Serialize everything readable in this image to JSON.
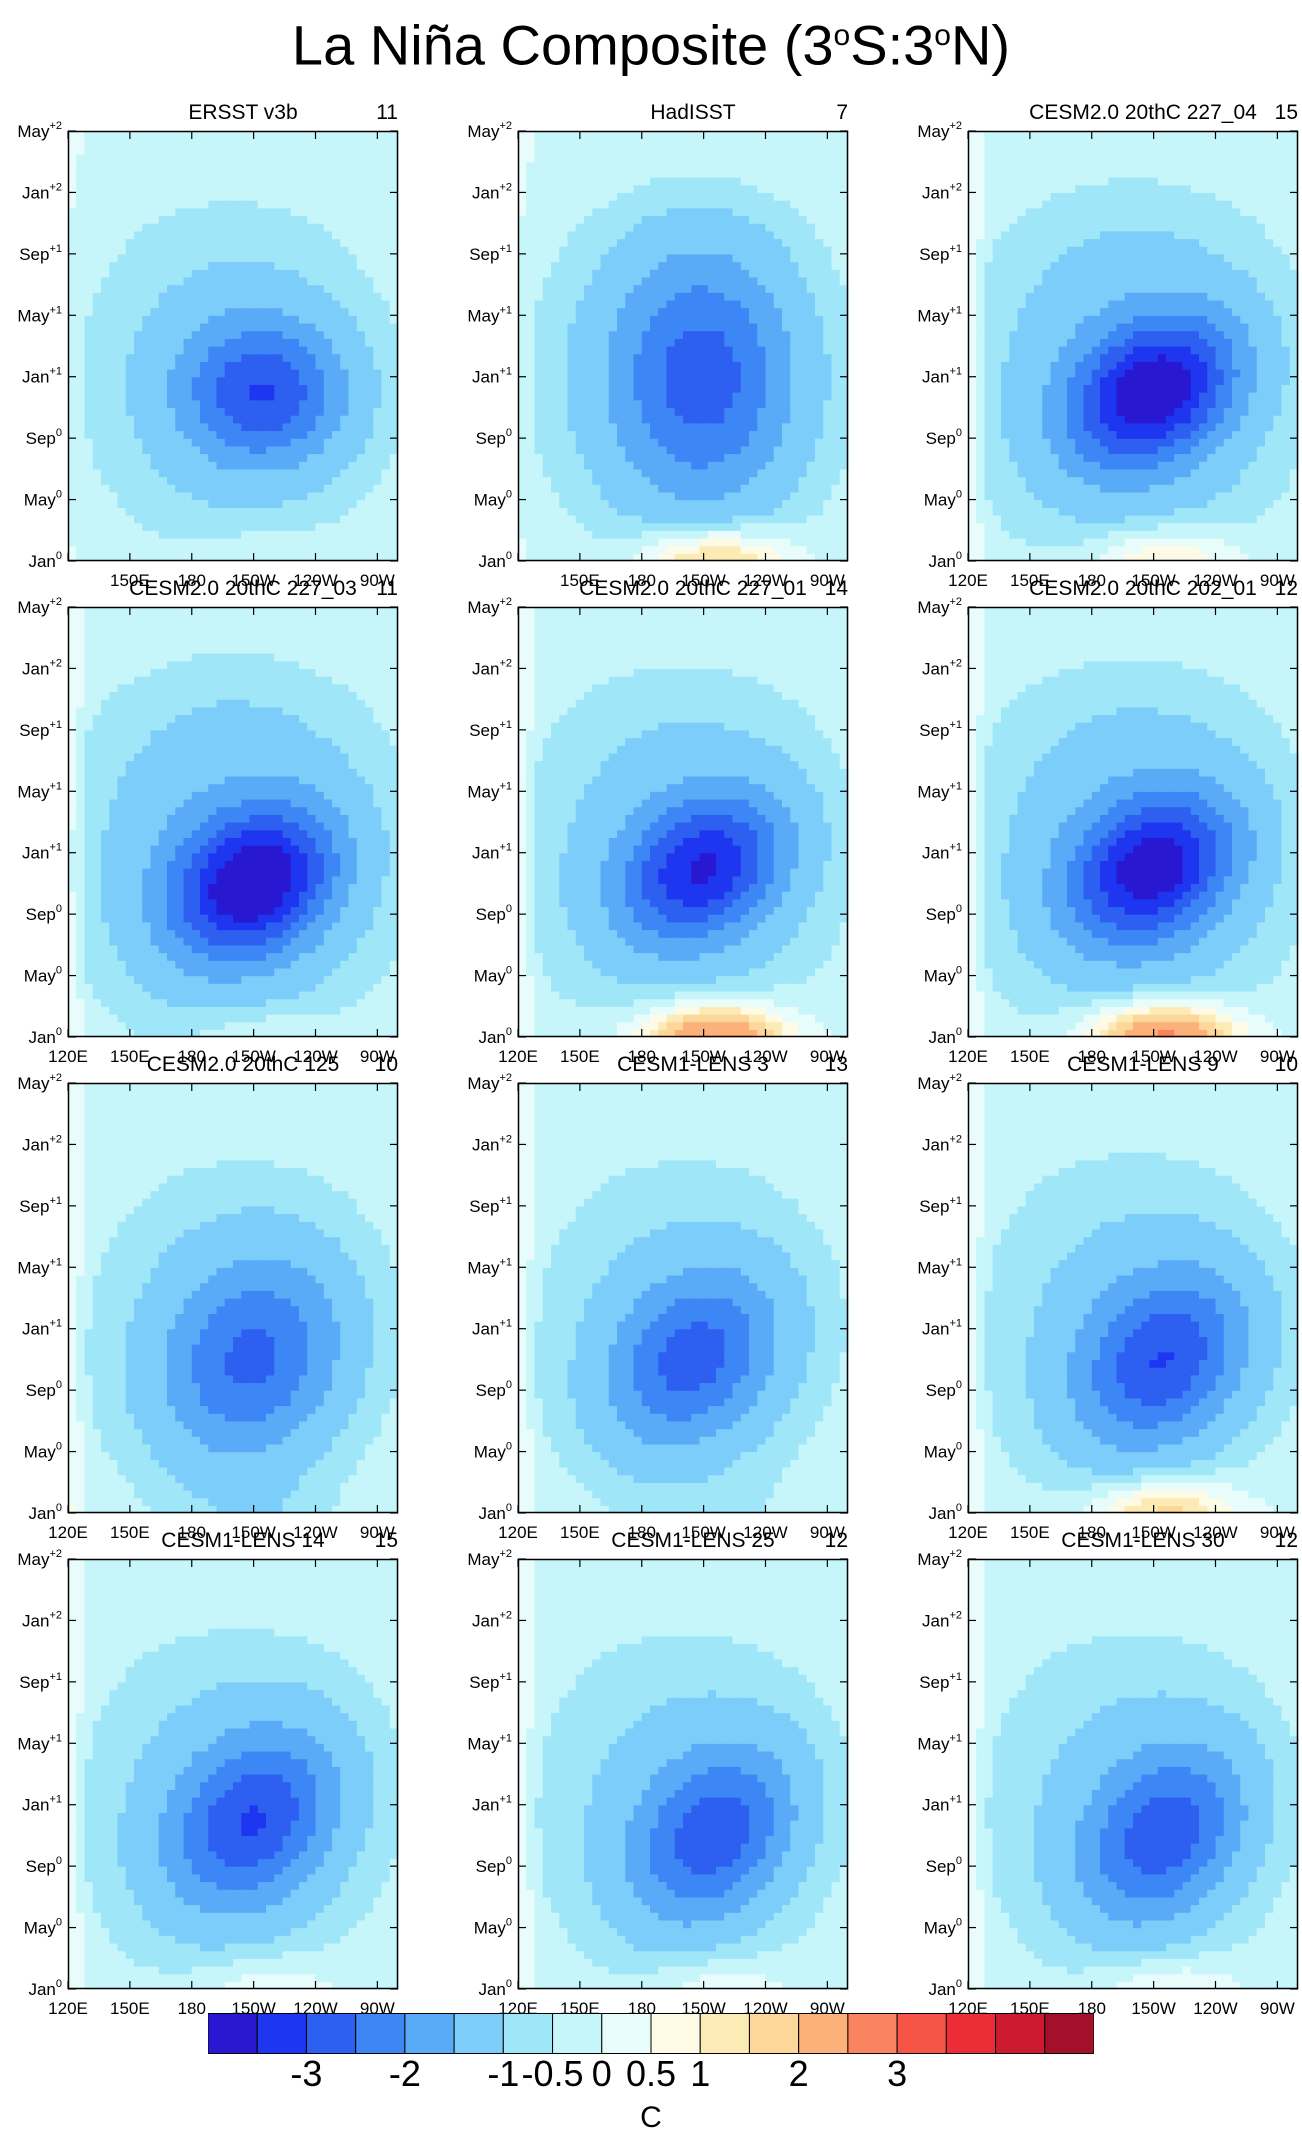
{
  "title": {
    "main": "La Niña Composite (3",
    "deg1": "o",
    "mid": "S:3",
    "deg2": "o",
    "end": "N)"
  },
  "colors": {
    "levels": [
      "#2818d2",
      "#1f36f0",
      "#2d5ff0",
      "#3d86f5",
      "#5aabf7",
      "#7ccdf9",
      "#a0e6f9",
      "#c6f5fa",
      "#e8fcfc",
      "#fdfbe5",
      "#fdebb6",
      "#fdd79a",
      "#fcb07a",
      "#f98560",
      "#f55446",
      "#ec2d38",
      "#cc1a30",
      "#a4102a"
    ],
    "contour": "#555555",
    "warm_accent": "#fbd8a4"
  },
  "colorbar": {
    "labels": [
      "-3",
      "-2",
      "-1",
      "-0.5",
      "0",
      "0.5",
      "1",
      "2",
      "3"
    ],
    "label_boundaries": [
      2,
      4,
      6,
      7,
      8,
      9,
      10,
      12,
      14
    ],
    "unit": "C"
  },
  "chart_data": {
    "type": "heatmap",
    "title": "La Niña Composite (3°S:3°N)",
    "x_ticks": [
      "120E",
      "150E",
      "180",
      "150W",
      "120W",
      "90W"
    ],
    "x_tick_lon": [
      120,
      150,
      180,
      210,
      240,
      270
    ],
    "xlim": [
      120,
      280
    ],
    "y_ticks": [
      {
        "month": "Jan",
        "sup": "0",
        "m": 0
      },
      {
        "month": "May",
        "sup": "0",
        "m": 4
      },
      {
        "month": "Sep",
        "sup": "0",
        "m": 8
      },
      {
        "month": "Jan",
        "sup": "+1",
        "m": 12
      },
      {
        "month": "May",
        "sup": "+1",
        "m": 16
      },
      {
        "month": "Sep",
        "sup": "+1",
        "m": 20
      },
      {
        "month": "Jan",
        "sup": "+2",
        "m": 24
      },
      {
        "month": "May",
        "sup": "+2",
        "m": 28
      }
    ],
    "ylim": [
      0,
      28
    ],
    "contour_levels": [
      -3,
      -2.5,
      -2,
      -1.5,
      -1,
      -0.5,
      -0.25,
      0,
      0.25,
      0.5,
      0.75,
      1,
      1.5,
      2,
      2.5,
      3,
      3.5
    ],
    "panels": [
      {
        "name": "ERSST v3b",
        "count": "11",
        "row": 0,
        "col": 0,
        "peak": -1.9,
        "lon": 215,
        "month": 11,
        "width": 42,
        "height": 5,
        "tilt": 0.0,
        "warm": 0.2,
        "mask120": true
      },
      {
        "name": "HadISST",
        "count": "7",
        "row": 0,
        "col": 1,
        "peak": -1.7,
        "lon": 210,
        "month": 12,
        "width": 48,
        "height": 9,
        "tilt": 0.0,
        "warm": 1.2,
        "mask120": true
      },
      {
        "name": "CESM2.0 20thC 227_04",
        "count": "15",
        "row": 0,
        "col": 2,
        "peak": -2.7,
        "lon": 210,
        "month": 11,
        "width": 40,
        "height": 5,
        "tilt": 0.12,
        "warm": 0.8,
        "mask120": false
      },
      {
        "name": "CESM2.0 20thC 227_03",
        "count": "11",
        "row": 1,
        "col": 0,
        "peak": -2.8,
        "lon": 210,
        "month": 10,
        "width": 40,
        "height": 5,
        "tilt": 0.1,
        "warm": 0.3,
        "mask120": false
      },
      {
        "name": "CESM2.0 20thC 227_01",
        "count": "14",
        "row": 1,
        "col": 1,
        "peak": -2.3,
        "lon": 210,
        "month": 11,
        "width": 40,
        "height": 5,
        "tilt": 0.11,
        "warm": 1.8,
        "mask120": false
      },
      {
        "name": "CESM2.0 20thC 202_01",
        "count": "12",
        "row": 1,
        "col": 2,
        "peak": -2.6,
        "lon": 210,
        "month": 11,
        "width": 40,
        "height": 5,
        "tilt": 0.11,
        "warm": 1.9,
        "mask120": false
      },
      {
        "name": "CESM2.0 20thC 125",
        "count": "10",
        "row": 2,
        "col": 0,
        "peak": -1.6,
        "lon": 210,
        "month": 10,
        "width": 46,
        "height": 7,
        "tilt": 0.06,
        "warm": -0.2,
        "mask120": false
      },
      {
        "name": "CESM1-LENS 3",
        "count": "13",
        "row": 2,
        "col": 1,
        "peak": -1.7,
        "lon": 205,
        "month": 10,
        "width": 42,
        "height": 6,
        "tilt": 0.1,
        "warm": -0.1,
        "mask120": false
      },
      {
        "name": "CESM1-LENS 9",
        "count": "10",
        "row": 2,
        "col": 2,
        "peak": -1.9,
        "lon": 215,
        "month": 10,
        "width": 42,
        "height": 6,
        "tilt": 0.1,
        "warm": 1.1,
        "mask120": false
      },
      {
        "name": "CESM1-LENS 14",
        "count": "15",
        "row": 3,
        "col": 0,
        "peak": -1.9,
        "lon": 210,
        "month": 11,
        "width": 42,
        "height": 6,
        "tilt": 0.1,
        "warm": 0.4,
        "mask120": false
      },
      {
        "name": "CESM1-LENS 25",
        "count": "12",
        "row": 3,
        "col": 1,
        "peak": -1.8,
        "lon": 215,
        "month": 10,
        "width": 40,
        "height": 6,
        "tilt": 0.1,
        "warm": 0.4,
        "mask120": false
      },
      {
        "name": "CESM1-LENS 30",
        "count": "12",
        "row": 3,
        "col": 2,
        "peak": -1.8,
        "lon": 215,
        "month": 10,
        "width": 40,
        "height": 6,
        "tilt": 0.1,
        "warm": 0.5,
        "mask120": false
      }
    ]
  }
}
